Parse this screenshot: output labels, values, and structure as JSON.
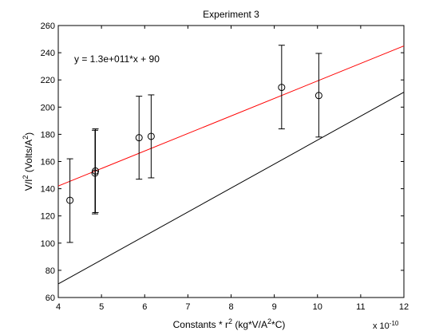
{
  "chart_data": {
    "type": "scatter",
    "title": "Experiment 3",
    "xlabel": "Constants * r² (kg*V/A²*C)",
    "ylabel": "V/I² (Volts/A²)",
    "x_multiplier": "x 10",
    "x_multiplier_exp": "-10",
    "xlim": [
      4,
      12
    ],
    "ylim": [
      60,
      260
    ],
    "xticks": [
      4,
      5,
      6,
      7,
      8,
      9,
      10,
      11,
      12
    ],
    "yticks": [
      60,
      80,
      100,
      120,
      140,
      160,
      180,
      200,
      220,
      240,
      260
    ],
    "grid": false,
    "annotation": "y = 1.3e+011*x + 90",
    "points": [
      {
        "x": 4.27,
        "y": 131.5,
        "err_low": 100.5,
        "err_high": 162
      },
      {
        "x": 4.85,
        "y": 151.5,
        "err_low": 121.5,
        "err_high": 183
      },
      {
        "x": 4.86,
        "y": 153,
        "err_low": 122.5,
        "err_high": 184
      },
      {
        "x": 5.87,
        "y": 177.5,
        "err_low": 147,
        "err_high": 208
      },
      {
        "x": 6.15,
        "y": 178.5,
        "err_low": 148,
        "err_high": 209
      },
      {
        "x": 9.17,
        "y": 214.5,
        "err_low": 184,
        "err_high": 245.5
      },
      {
        "x": 10.03,
        "y": 208.5,
        "err_low": 178,
        "err_high": 239.5
      }
    ],
    "lines": [
      {
        "color": "#ff0000",
        "x": [
          4,
          12
        ],
        "y": [
          142,
          245
        ]
      },
      {
        "color": "#000000",
        "x": [
          4,
          12
        ],
        "y": [
          70,
          211
        ]
      }
    ]
  }
}
